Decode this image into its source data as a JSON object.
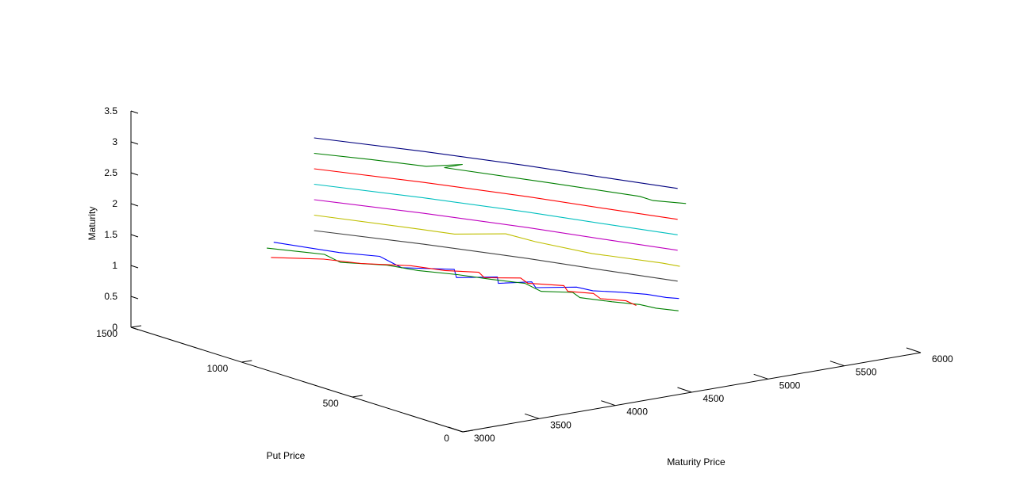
{
  "chart_data": {
    "type": "line",
    "projection": "3d",
    "xlabel": "Put Price",
    "ylabel": "Maturity Price",
    "zlabel": "Maturity",
    "xlim": [
      0,
      1500
    ],
    "ylim": [
      3000,
      6000
    ],
    "zlim": [
      0,
      3.5
    ],
    "x_ticks": [
      "0",
      "500",
      "1000",
      "1500"
    ],
    "y_ticks": [
      "3000",
      "3500",
      "4000",
      "4500",
      "5000",
      "5500",
      "6000"
    ],
    "z_ticks": [
      "0",
      "0.5",
      "1",
      "1.5",
      "2",
      "2.5",
      "3",
      "3.5"
    ],
    "grid": false,
    "series": [
      {
        "color": "#00007f",
        "maturity": 3.25,
        "put_price": [
          1100,
          800,
          500,
          250,
          50
        ],
        "maturity_price": [
          3620,
          3900,
          4150,
          4330,
          4480
        ]
      },
      {
        "color": "#007f00",
        "maturity": 3.0,
        "put_price": [
          1100,
          950,
          800,
          760,
          760,
          450,
          180,
          120,
          40
        ],
        "maturity_price": [
          3620,
          3780,
          3920,
          4100,
          3980,
          4220,
          4420,
          4420,
          4520
        ]
      },
      {
        "color": "#ff0000",
        "maturity": 2.75,
        "put_price": [
          1100,
          800,
          500,
          250,
          50
        ],
        "maturity_price": [
          3620,
          3900,
          4150,
          4330,
          4480
        ]
      },
      {
        "color": "#00bfbf",
        "maturity": 2.5,
        "put_price": [
          1100,
          800,
          500,
          250,
          50
        ],
        "maturity_price": [
          3620,
          3900,
          4150,
          4330,
          4480
        ]
      },
      {
        "color": "#bf00bf",
        "maturity": 2.25,
        "put_price": [
          1100,
          800,
          500,
          250,
          50
        ],
        "maturity_price": [
          3620,
          3900,
          4150,
          4330,
          4480
        ]
      },
      {
        "color": "#bfbf00",
        "maturity": 2.0,
        "put_price": [
          1100,
          800,
          700,
          620,
          500,
          300,
          100,
          40
        ],
        "maturity_price": [
          3620,
          3880,
          3960,
          4180,
          4200,
          4280,
          4450,
          4480
        ]
      },
      {
        "color": "#3f3f3f",
        "maturity": 1.75,
        "put_price": [
          1100,
          800,
          500,
          250,
          50
        ],
        "maturity_price": [
          3620,
          3900,
          4150,
          4330,
          4480
        ]
      },
      {
        "color": "#0000ff",
        "maturity": 1.5,
        "put_price": [
          1200,
          1000,
          900,
          760,
          660,
          580,
          520,
          460,
          420,
          360,
          300,
          240,
          180,
          120,
          60,
          30
        ],
        "maturity_price": [
          3500,
          3640,
          3760,
          3700,
          3900,
          3800,
          3980,
          3900,
          4060,
          4000,
          4180,
          4200,
          4300,
          4380,
          4420,
          4460
        ]
      },
      {
        "color": "#008000",
        "maturity": 1.25,
        "put_price": [
          1300,
          1150,
          1050,
          950,
          850,
          750,
          650,
          560,
          460,
          400,
          340,
          250,
          180,
          120,
          60
        ],
        "maturity_price": [
          3600,
          3760,
          3720,
          3880,
          3940,
          4050,
          4130,
          4220,
          4180,
          4300,
          4260,
          4340,
          4420,
          4440,
          4500
        ]
      },
      {
        "color": "#ff0000",
        "maturity": 1.0,
        "put_price": [
          1350,
          1250,
          1150,
          1050,
          950,
          880,
          820,
          760,
          700,
          620,
          560,
          500,
          440,
          380,
          320
        ],
        "maturity_price": [
          3700,
          3900,
          4000,
          4180,
          4260,
          4380,
          4330,
          4480,
          4440,
          4560,
          4500,
          4580,
          4540,
          4620,
          4600
        ]
      }
    ]
  }
}
